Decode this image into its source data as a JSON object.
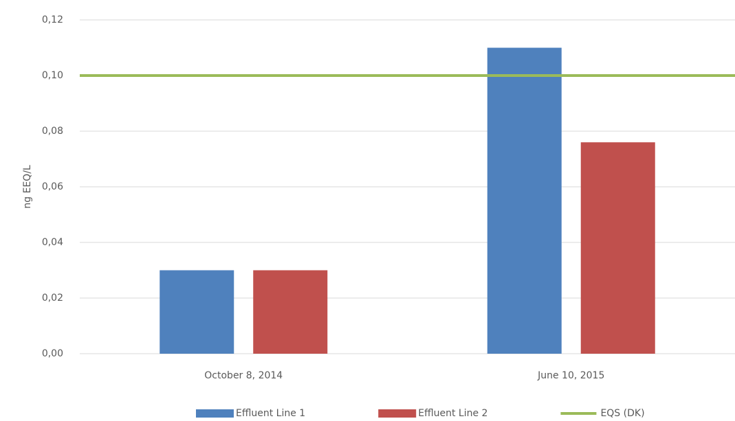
{
  "chart_data": {
    "type": "bar",
    "y_label": "ng EEQ/L",
    "categories": [
      "October 8, 2014",
      "June 10, 2015"
    ],
    "series": [
      {
        "name": "Effluent Line 1",
        "color": "#4f81bd",
        "values": [
          0.03,
          0.11
        ]
      },
      {
        "name": "Effluent Line 2",
        "color": "#c0504d",
        "values": [
          0.03,
          0.076
        ]
      },
      {
        "name": "EQS (DK)",
        "color": "#9bbb59",
        "type": "line",
        "values": [
          0.1,
          0.1
        ]
      }
    ],
    "ylim": [
      0,
      0.12
    ],
    "yticks": [
      {
        "value": 0,
        "label": "0,00"
      },
      {
        "value": 0.02,
        "label": "0,02"
      },
      {
        "value": 0.04,
        "label": "0,04"
      },
      {
        "value": 0.06,
        "label": "0,06"
      },
      {
        "value": 0.08,
        "label": "0,08"
      },
      {
        "value": 0.1,
        "label": "0,10"
      },
      {
        "value": 0.12,
        "label": "0,12"
      }
    ],
    "grid": true,
    "legend": "bottom"
  }
}
